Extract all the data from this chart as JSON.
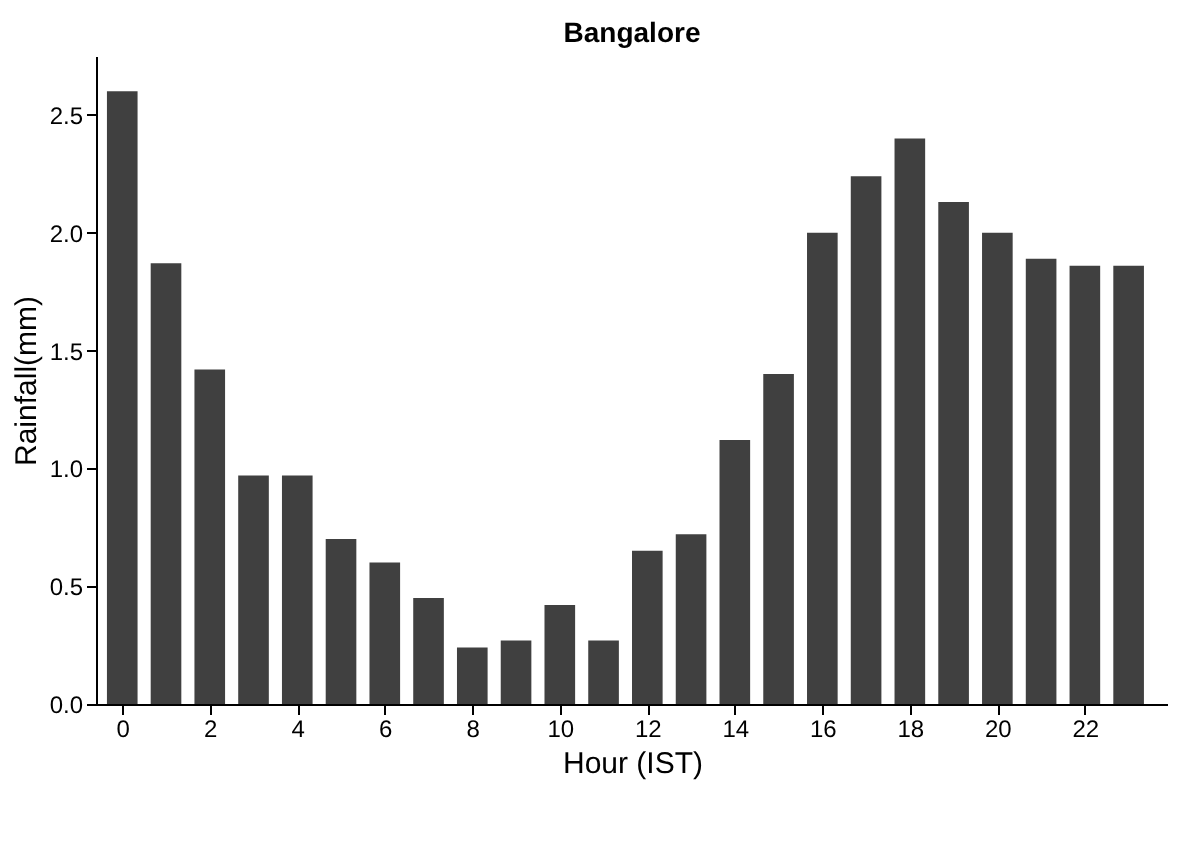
{
  "chart_data": {
    "type": "bar",
    "title": "Bangalore",
    "xlabel": "Hour (IST)",
    "ylabel": "Rainfall(mm)",
    "x": [
      0,
      1,
      2,
      3,
      4,
      5,
      6,
      7,
      8,
      9,
      10,
      11,
      12,
      13,
      14,
      15,
      16,
      17,
      18,
      19,
      20,
      21,
      22,
      23
    ],
    "values": [
      2.6,
      1.87,
      1.42,
      0.97,
      0.97,
      0.7,
      0.6,
      0.45,
      0.24,
      0.27,
      0.42,
      0.27,
      0.65,
      0.72,
      1.12,
      1.4,
      2.0,
      2.24,
      2.4,
      2.13,
      2.0,
      1.89,
      1.86,
      1.86
    ],
    "color": "#404040",
    "xlim": [
      -0.6,
      23.9
    ],
    "xticks": [
      0,
      2,
      4,
      6,
      8,
      10,
      12,
      14,
      16,
      18,
      20,
      22
    ],
    "ylim": [
      0,
      2.75
    ],
    "yticks": [
      {
        "value": 0,
        "label": "0.0"
      },
      {
        "value": 0.5,
        "label": "0.5"
      },
      {
        "value": 1,
        "label": "1.0"
      },
      {
        "value": 1.5,
        "label": "1.5"
      },
      {
        "value": 2,
        "label": "2.0"
      },
      {
        "value": 2.5,
        "label": "2.5"
      }
    ],
    "grid": false
  }
}
